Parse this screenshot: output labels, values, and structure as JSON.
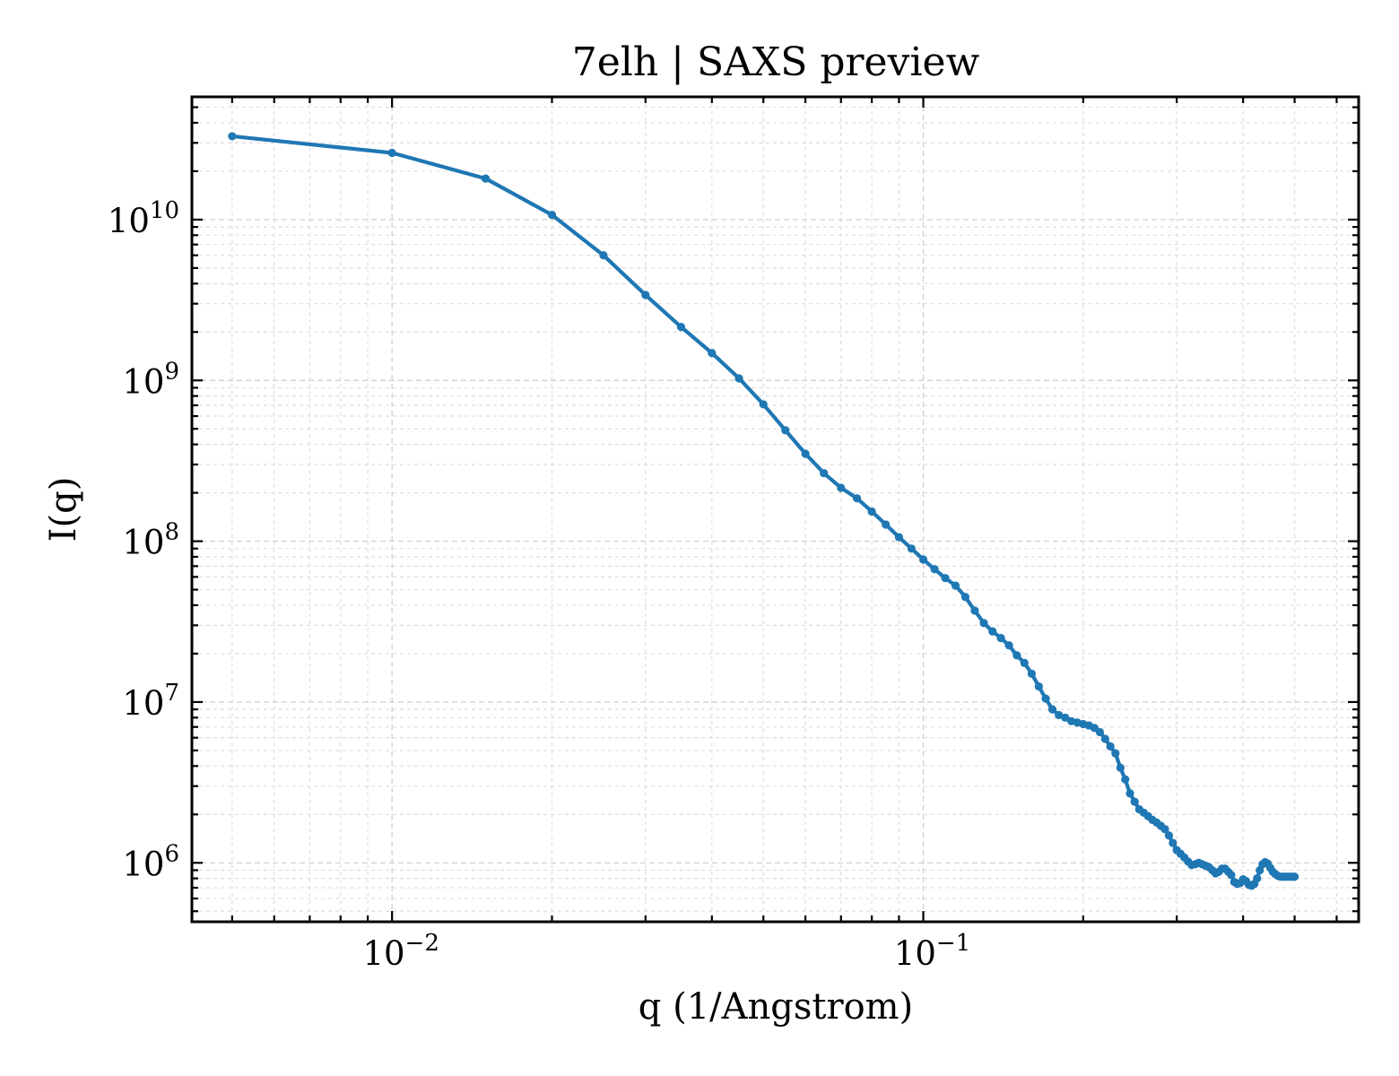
{
  "chart_data": {
    "type": "line",
    "title": "7elh | SAXS preview",
    "xlabel": "q (1/Angstrom)",
    "ylabel": "I(q)",
    "xscale": "log",
    "yscale": "log",
    "xlim": [
      0.0042,
      0.66
    ],
    "ylim": [
      430000,
      58000000000
    ],
    "grid": true,
    "legend": "none",
    "line_color": "#1f77b4",
    "marker": "circle",
    "x_ticks": [
      {
        "value": 0.01,
        "base": "10",
        "exp": "−2"
      },
      {
        "value": 0.1,
        "base": "10",
        "exp": "−1"
      }
    ],
    "y_ticks": [
      {
        "value": 1000000,
        "base": "10",
        "exp": "6"
      },
      {
        "value": 10000000,
        "base": "10",
        "exp": "7"
      },
      {
        "value": 100000000,
        "base": "10",
        "exp": "8"
      },
      {
        "value": 1000000000,
        "base": "10",
        "exp": "9"
      },
      {
        "value": 10000000000,
        "base": "10",
        "exp": "10"
      }
    ],
    "series": [
      {
        "x": [
          0.005,
          0.01,
          0.015,
          0.02,
          0.025,
          0.03,
          0.035,
          0.04,
          0.045,
          0.05,
          0.055,
          0.06,
          0.065,
          0.07,
          0.075,
          0.08,
          0.085,
          0.09,
          0.095,
          0.1,
          0.105,
          0.11,
          0.115,
          0.12,
          0.125,
          0.13,
          0.135,
          0.14,
          0.145,
          0.15,
          0.155,
          0.16,
          0.165,
          0.17,
          0.175,
          0.18,
          0.185,
          0.19,
          0.195,
          0.2,
          0.205,
          0.21,
          0.215,
          0.22,
          0.225,
          0.23,
          0.235,
          0.24,
          0.245,
          0.25,
          0.255,
          0.26,
          0.265,
          0.27,
          0.275,
          0.28,
          0.285,
          0.29,
          0.295,
          0.3,
          0.305,
          0.31,
          0.315,
          0.32,
          0.325,
          0.33,
          0.335,
          0.34,
          0.345,
          0.35,
          0.355,
          0.36,
          0.365,
          0.37,
          0.375,
          0.38,
          0.385,
          0.39,
          0.395,
          0.4,
          0.405,
          0.41,
          0.415,
          0.42,
          0.425,
          0.43,
          0.435,
          0.44,
          0.445,
          0.45,
          0.455,
          0.46,
          0.465,
          0.47,
          0.475,
          0.48,
          0.485,
          0.49,
          0.495,
          0.5
        ],
        "y": [
          33000000000,
          26000000000,
          18000000000,
          10700000000,
          6000000000,
          3400000000,
          2150000000,
          1480000000,
          1030000000,
          710000000,
          490000000,
          350000000,
          265000000,
          215000000,
          185000000,
          153000000,
          127000000,
          106000000,
          90000000,
          77000000,
          67000000,
          59000000,
          53000000,
          45000000,
          37000000,
          31000000,
          27500000,
          25000000,
          22500000,
          19500000,
          17500000,
          15000000,
          12500000,
          10500000,
          9000000,
          8300000,
          8000000,
          7600000,
          7450000,
          7300000,
          7150000,
          6900000,
          6500000,
          5900000,
          5300000,
          4800000,
          3900000,
          3300000,
          2700000,
          2400000,
          2150000,
          2050000,
          1950000,
          1850000,
          1780000,
          1700000,
          1620000,
          1480000,
          1330000,
          1200000,
          1140000,
          1080000,
          1020000,
          970000,
          980000,
          1000000,
          980000,
          960000,
          940000,
          900000,
          860000,
          880000,
          920000,
          920000,
          880000,
          840000,
          760000,
          740000,
          750000,
          790000,
          770000,
          730000,
          720000,
          740000,
          800000,
          900000,
          980000,
          1010000,
          990000,
          930000,
          880000,
          850000,
          830000,
          820000,
          820000,
          820000,
          820000,
          820000,
          820000,
          820000
        ]
      }
    ]
  }
}
